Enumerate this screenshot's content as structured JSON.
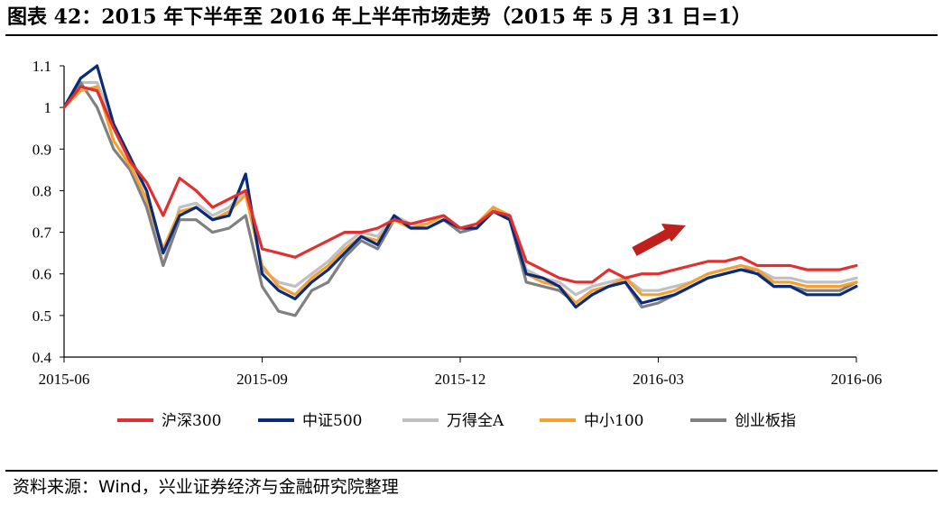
{
  "title": "图表 42：2015 年下半年至 2016 年上半年市场走势（2015 年 5 月 31 日=1）",
  "source": "资料来源：Wind，兴业证券经济与金融研究院整理",
  "chart_data": {
    "type": "line",
    "title": "2015 年下半年至 2016 年上半年市场走势（2015 年 5 月 31 日=1）",
    "xlabel": "",
    "ylabel": "",
    "ylim": [
      0.4,
      1.1
    ],
    "yticks": [
      "0.4",
      "0.5",
      "0.6",
      "0.7",
      "0.8",
      "0.9",
      "1",
      "1.1"
    ],
    "ytick_values": [
      0.4,
      0.5,
      0.6,
      0.7,
      0.8,
      0.9,
      1.0,
      1.1
    ],
    "xticks": [
      "2015-06",
      "2015-09",
      "2015-12",
      "2016-03",
      "2016-06"
    ],
    "xtick_positions": [
      0,
      3,
      6,
      9,
      12
    ],
    "xlim": [
      0,
      12
    ],
    "legend_position": "bottom",
    "annotation": "red arrow pointing up-right over 2016-03 to 2016-04",
    "x": [
      0,
      0.25,
      0.5,
      0.75,
      1.0,
      1.25,
      1.5,
      1.75,
      2.0,
      2.25,
      2.5,
      2.75,
      3.0,
      3.25,
      3.5,
      3.75,
      4.0,
      4.25,
      4.5,
      4.75,
      5.0,
      5.25,
      5.5,
      5.75,
      6.0,
      6.25,
      6.5,
      6.75,
      7.0,
      7.25,
      7.5,
      7.75,
      8.0,
      8.25,
      8.5,
      8.75,
      9.0,
      9.25,
      9.5,
      9.75,
      10.0,
      10.25,
      10.5,
      10.75,
      11.0,
      11.25,
      11.5,
      11.75,
      12.0
    ],
    "series": [
      {
        "name": "沪深300",
        "color": "#e03030",
        "values": [
          1.0,
          1.05,
          1.04,
          0.95,
          0.87,
          0.82,
          0.74,
          0.83,
          0.8,
          0.76,
          0.78,
          0.8,
          0.66,
          0.65,
          0.64,
          0.66,
          0.68,
          0.7,
          0.7,
          0.71,
          0.73,
          0.72,
          0.73,
          0.74,
          0.71,
          0.72,
          0.75,
          0.74,
          0.63,
          0.61,
          0.59,
          0.58,
          0.58,
          0.61,
          0.59,
          0.6,
          0.6,
          0.61,
          0.62,
          0.63,
          0.63,
          0.64,
          0.62,
          0.62,
          0.62,
          0.61,
          0.61,
          0.61,
          0.62
        ]
      },
      {
        "name": "中证500",
        "color": "#0a2a7a",
        "values": [
          1.0,
          1.07,
          1.1,
          0.96,
          0.88,
          0.8,
          0.65,
          0.74,
          0.76,
          0.73,
          0.74,
          0.84,
          0.6,
          0.56,
          0.54,
          0.58,
          0.61,
          0.65,
          0.69,
          0.67,
          0.74,
          0.71,
          0.71,
          0.73,
          0.71,
          0.71,
          0.75,
          0.73,
          0.6,
          0.59,
          0.57,
          0.52,
          0.55,
          0.57,
          0.58,
          0.53,
          0.54,
          0.55,
          0.57,
          0.59,
          0.6,
          0.61,
          0.6,
          0.57,
          0.57,
          0.55,
          0.55,
          0.55,
          0.57
        ]
      },
      {
        "name": "万得全A",
        "color": "#c0c0c0",
        "values": [
          1.0,
          1.06,
          1.06,
          0.96,
          0.87,
          0.8,
          0.62,
          0.76,
          0.77,
          0.74,
          0.76,
          0.8,
          0.61,
          0.58,
          0.57,
          0.6,
          0.63,
          0.67,
          0.7,
          0.69,
          0.74,
          0.72,
          0.72,
          0.74,
          0.71,
          0.72,
          0.76,
          0.74,
          0.61,
          0.59,
          0.58,
          0.55,
          0.57,
          0.58,
          0.59,
          0.56,
          0.56,
          0.57,
          0.58,
          0.6,
          0.61,
          0.62,
          0.61,
          0.59,
          0.59,
          0.58,
          0.58,
          0.58,
          0.59
        ]
      },
      {
        "name": "中小100",
        "color": "#f5a030",
        "values": [
          1.0,
          1.04,
          1.05,
          0.92,
          0.86,
          0.78,
          0.66,
          0.75,
          0.76,
          0.73,
          0.75,
          0.79,
          0.62,
          0.57,
          0.55,
          0.59,
          0.62,
          0.66,
          0.69,
          0.68,
          0.73,
          0.71,
          0.72,
          0.74,
          0.71,
          0.72,
          0.76,
          0.74,
          0.6,
          0.58,
          0.57,
          0.53,
          0.56,
          0.57,
          0.59,
          0.55,
          0.55,
          0.56,
          0.58,
          0.6,
          0.61,
          0.62,
          0.61,
          0.58,
          0.58,
          0.57,
          0.57,
          0.57,
          0.58
        ]
      },
      {
        "name": "创业板指",
        "color": "#808080",
        "values": [
          1.0,
          1.06,
          1.0,
          0.9,
          0.85,
          0.76,
          0.62,
          0.73,
          0.73,
          0.7,
          0.71,
          0.74,
          0.57,
          0.51,
          0.5,
          0.56,
          0.58,
          0.64,
          0.68,
          0.66,
          0.73,
          0.71,
          0.71,
          0.73,
          0.7,
          0.71,
          0.76,
          0.73,
          0.58,
          0.57,
          0.56,
          0.53,
          0.56,
          0.57,
          0.58,
          0.52,
          0.53,
          0.55,
          0.57,
          0.59,
          0.6,
          0.61,
          0.61,
          0.57,
          0.57,
          0.56,
          0.56,
          0.56,
          0.58
        ]
      }
    ]
  }
}
